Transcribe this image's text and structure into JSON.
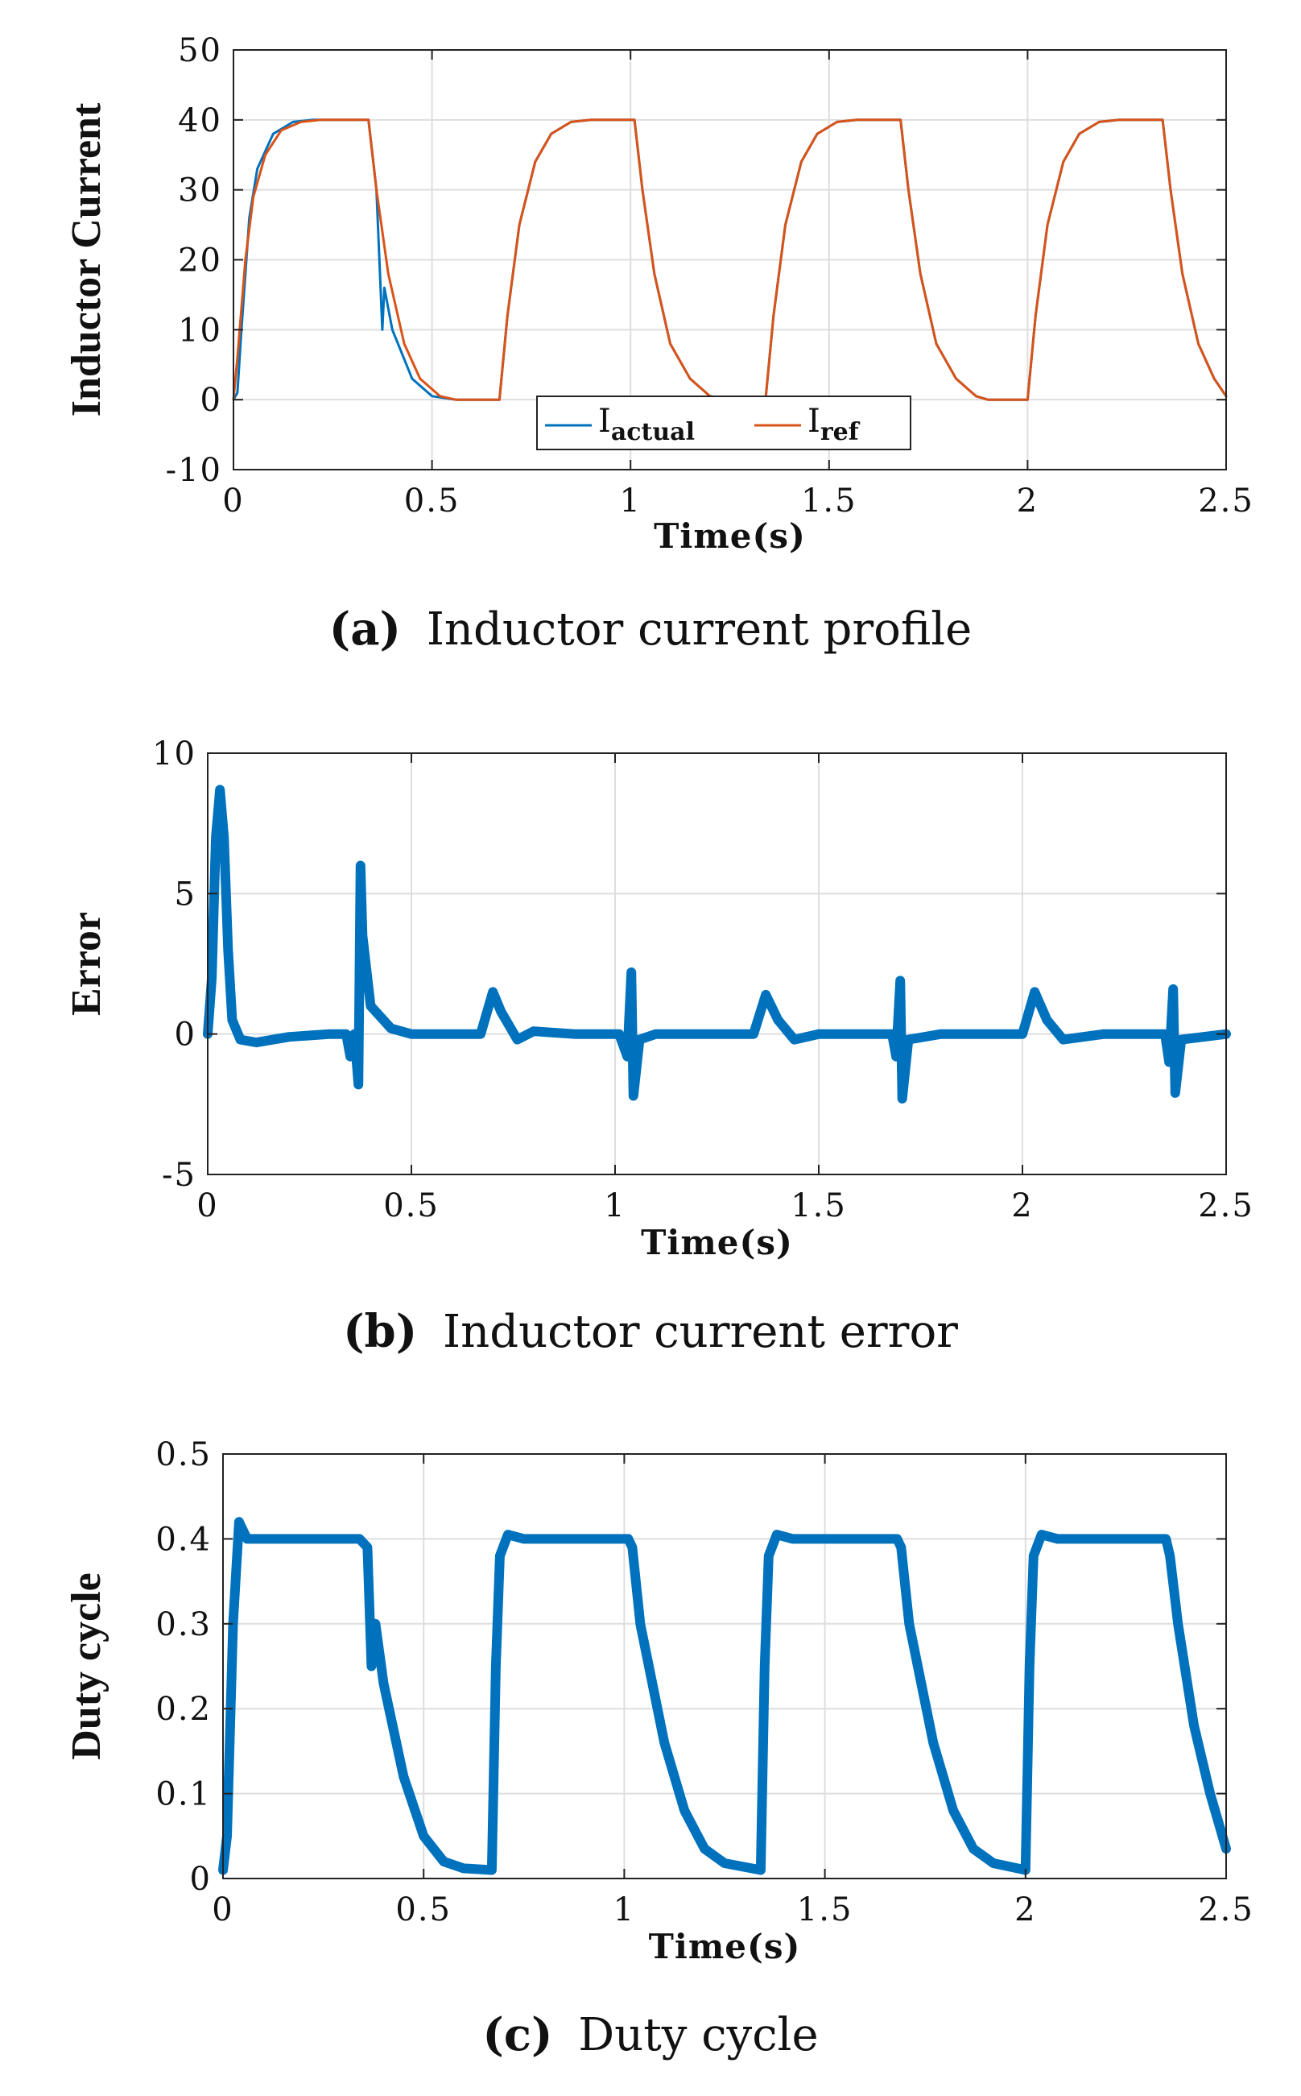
{
  "colors": {
    "actual": "#0072BD",
    "ref": "#D95319",
    "grid": "#dedede",
    "axis": "#222222"
  },
  "chart_data": [
    {
      "id": "a",
      "type": "line",
      "xlabel": "Time(s)",
      "ylabel": "Inductor Current",
      "xlim": [
        0,
        2.5
      ],
      "ylim": [
        -10,
        50
      ],
      "xticks": [
        0,
        0.5,
        1,
        1.5,
        2,
        2.5
      ],
      "xtick_labels": [
        "0",
        "0.5",
        "1",
        "1.5",
        "2",
        "2.5"
      ],
      "yticks": [
        -10,
        0,
        10,
        20,
        30,
        40,
        50
      ],
      "ytick_labels": [
        "-10",
        "0",
        "10",
        "20",
        "30",
        "40",
        "50"
      ],
      "caption": {
        "tag": "(a)",
        "letter": "a",
        "text": "Inductor current profile"
      },
      "legend": [
        {
          "base": "I",
          "sub": "actual",
          "series": "actual"
        },
        {
          "base": "I",
          "sub": "ref",
          "series": "ref"
        }
      ],
      "legend_location": "bottom-center",
      "series": [
        {
          "name": "I_actual",
          "color_key": "actual",
          "points": [
            [
              0,
              0
            ],
            [
              0.01,
              1
            ],
            [
              0.02,
              10
            ],
            [
              0.04,
              26
            ],
            [
              0.06,
              33
            ],
            [
              0.1,
              38
            ],
            [
              0.15,
              39.7
            ],
            [
              0.2,
              40
            ],
            [
              0.34,
              40
            ],
            [
              0.36,
              30
            ],
            [
              0.375,
              10
            ],
            [
              0.38,
              16
            ],
            [
              0.4,
              10
            ],
            [
              0.45,
              3
            ],
            [
              0.5,
              0.5
            ],
            [
              0.56,
              0
            ],
            [
              0.67,
              0
            ],
            [
              0.69,
              12
            ],
            [
              0.72,
              25
            ],
            [
              0.76,
              34
            ],
            [
              0.8,
              38
            ],
            [
              0.85,
              39.7
            ],
            [
              0.9,
              40
            ],
            [
              1.01,
              40
            ],
            [
              1.03,
              30
            ],
            [
              1.06,
              18
            ],
            [
              1.1,
              8
            ],
            [
              1.15,
              3
            ],
            [
              1.2,
              0.5
            ],
            [
              1.25,
              0
            ],
            [
              1.34,
              0
            ],
            [
              1.36,
              12
            ],
            [
              1.39,
              25
            ],
            [
              1.43,
              34
            ],
            [
              1.47,
              38
            ],
            [
              1.52,
              39.7
            ],
            [
              1.57,
              40
            ],
            [
              1.68,
              40
            ],
            [
              1.7,
              30
            ],
            [
              1.73,
              18
            ],
            [
              1.77,
              8
            ],
            [
              1.82,
              3
            ],
            [
              1.87,
              0.5
            ],
            [
              1.9,
              0
            ],
            [
              2.0,
              0
            ],
            [
              2.02,
              12
            ],
            [
              2.05,
              25
            ],
            [
              2.09,
              34
            ],
            [
              2.13,
              38
            ],
            [
              2.18,
              39.7
            ],
            [
              2.23,
              40
            ],
            [
              2.34,
              40
            ],
            [
              2.36,
              30
            ],
            [
              2.39,
              18
            ],
            [
              2.43,
              8
            ],
            [
              2.47,
              3
            ],
            [
              2.5,
              0.5
            ]
          ]
        },
        {
          "name": "I_ref",
          "color_key": "ref",
          "points": [
            [
              0,
              0
            ],
            [
              0.01,
              6
            ],
            [
              0.03,
              20
            ],
            [
              0.05,
              29
            ],
            [
              0.08,
              35
            ],
            [
              0.12,
              38.5
            ],
            [
              0.17,
              39.7
            ],
            [
              0.22,
              40
            ],
            [
              0.34,
              40
            ],
            [
              0.36,
              30
            ],
            [
              0.39,
              18
            ],
            [
              0.43,
              8
            ],
            [
              0.47,
              3
            ],
            [
              0.52,
              0.5
            ],
            [
              0.56,
              0
            ],
            [
              0.67,
              0
            ],
            [
              0.69,
              12
            ],
            [
              0.72,
              25
            ],
            [
              0.76,
              34
            ],
            [
              0.8,
              38
            ],
            [
              0.85,
              39.7
            ],
            [
              0.9,
              40
            ],
            [
              1.01,
              40
            ],
            [
              1.03,
              30
            ],
            [
              1.06,
              18
            ],
            [
              1.1,
              8
            ],
            [
              1.15,
              3
            ],
            [
              1.2,
              0.5
            ],
            [
              1.25,
              0
            ],
            [
              1.34,
              0
            ],
            [
              1.36,
              12
            ],
            [
              1.39,
              25
            ],
            [
              1.43,
              34
            ],
            [
              1.47,
              38
            ],
            [
              1.52,
              39.7
            ],
            [
              1.57,
              40
            ],
            [
              1.68,
              40
            ],
            [
              1.7,
              30
            ],
            [
              1.73,
              18
            ],
            [
              1.77,
              8
            ],
            [
              1.82,
              3
            ],
            [
              1.87,
              0.5
            ],
            [
              1.9,
              0
            ],
            [
              2.0,
              0
            ],
            [
              2.02,
              12
            ],
            [
              2.05,
              25
            ],
            [
              2.09,
              34
            ],
            [
              2.13,
              38
            ],
            [
              2.18,
              39.7
            ],
            [
              2.23,
              40
            ],
            [
              2.34,
              40
            ],
            [
              2.36,
              30
            ],
            [
              2.39,
              18
            ],
            [
              2.43,
              8
            ],
            [
              2.47,
              3
            ],
            [
              2.5,
              0.5
            ]
          ]
        }
      ]
    },
    {
      "id": "b",
      "type": "line",
      "xlabel": "Time(s)",
      "ylabel": "Error",
      "xlim": [
        0,
        2.5
      ],
      "ylim": [
        -5,
        10
      ],
      "xticks": [
        0,
        0.5,
        1,
        1.5,
        2,
        2.5
      ],
      "xtick_labels": [
        "0",
        "0.5",
        "1",
        "1.5",
        "2",
        "2.5"
      ],
      "yticks": [
        -5,
        0,
        5,
        10
      ],
      "ytick_labels": [
        "-5",
        "0",
        "5",
        "10"
      ],
      "caption": {
        "tag": "(b)",
        "letter": "b",
        "text": "Inductor current error"
      },
      "series": [
        {
          "name": "error",
          "color_key": "actual",
          "points": [
            [
              0,
              0
            ],
            [
              0.01,
              2
            ],
            [
              0.02,
              7
            ],
            [
              0.03,
              8.7
            ],
            [
              0.04,
              7
            ],
            [
              0.05,
              3
            ],
            [
              0.06,
              0.5
            ],
            [
              0.08,
              -0.2
            ],
            [
              0.12,
              -0.3
            ],
            [
              0.2,
              -0.1
            ],
            [
              0.3,
              0
            ],
            [
              0.34,
              0
            ],
            [
              0.35,
              -0.8
            ],
            [
              0.36,
              0
            ],
            [
              0.37,
              -1.8
            ],
            [
              0.375,
              6
            ],
            [
              0.38,
              3.5
            ],
            [
              0.4,
              1
            ],
            [
              0.45,
              0.2
            ],
            [
              0.5,
              0
            ],
            [
              0.67,
              0
            ],
            [
              0.7,
              1.5
            ],
            [
              0.72,
              0.8
            ],
            [
              0.76,
              -0.2
            ],
            [
              0.8,
              0.1
            ],
            [
              0.9,
              0
            ],
            [
              1.01,
              0
            ],
            [
              1.03,
              -0.8
            ],
            [
              1.04,
              2.2
            ],
            [
              1.045,
              -2.2
            ],
            [
              1.06,
              -0.2
            ],
            [
              1.1,
              0
            ],
            [
              1.34,
              0
            ],
            [
              1.37,
              1.4
            ],
            [
              1.4,
              0.5
            ],
            [
              1.44,
              -0.2
            ],
            [
              1.5,
              0
            ],
            [
              1.68,
              0
            ],
            [
              1.69,
              -0.8
            ],
            [
              1.7,
              1.9
            ],
            [
              1.705,
              -2.3
            ],
            [
              1.72,
              -0.2
            ],
            [
              1.8,
              0
            ],
            [
              2.0,
              0
            ],
            [
              2.03,
              1.5
            ],
            [
              2.06,
              0.5
            ],
            [
              2.1,
              -0.2
            ],
            [
              2.2,
              0
            ],
            [
              2.35,
              0
            ],
            [
              2.36,
              -1
            ],
            [
              2.37,
              1.6
            ],
            [
              2.375,
              -2.1
            ],
            [
              2.39,
              -0.2
            ],
            [
              2.5,
              0
            ]
          ]
        }
      ]
    },
    {
      "id": "c",
      "type": "line",
      "xlabel": "Time(s)",
      "ylabel": "Duty cycle",
      "xlim": [
        0,
        2.5
      ],
      "ylim": [
        0,
        0.5
      ],
      "xticks": [
        0,
        0.5,
        1,
        1.5,
        2,
        2.5
      ],
      "xtick_labels": [
        "0",
        "0.5",
        "1",
        "1.5",
        "2",
        "2.5"
      ],
      "yticks": [
        0,
        0.1,
        0.2,
        0.3,
        0.4,
        0.5
      ],
      "ytick_labels": [
        "0",
        "0.1",
        "0.2",
        "0.3",
        "0.4",
        "0.5"
      ],
      "caption": {
        "tag": "(c)",
        "letter": "c",
        "text": "Duty cycle"
      },
      "series": [
        {
          "name": "duty",
          "color_key": "actual",
          "points": [
            [
              0,
              0.01
            ],
            [
              0.01,
              0.05
            ],
            [
              0.025,
              0.3
            ],
            [
              0.04,
              0.42
            ],
            [
              0.06,
              0.4
            ],
            [
              0.34,
              0.4
            ],
            [
              0.36,
              0.39
            ],
            [
              0.37,
              0.25
            ],
            [
              0.38,
              0.3
            ],
            [
              0.4,
              0.23
            ],
            [
              0.45,
              0.12
            ],
            [
              0.5,
              0.05
            ],
            [
              0.55,
              0.02
            ],
            [
              0.6,
              0.012
            ],
            [
              0.67,
              0.01
            ],
            [
              0.68,
              0.25
            ],
            [
              0.69,
              0.38
            ],
            [
              0.71,
              0.405
            ],
            [
              0.75,
              0.4
            ],
            [
              1.01,
              0.4
            ],
            [
              1.02,
              0.39
            ],
            [
              1.04,
              0.3
            ],
            [
              1.1,
              0.16
            ],
            [
              1.15,
              0.08
            ],
            [
              1.2,
              0.035
            ],
            [
              1.25,
              0.018
            ],
            [
              1.34,
              0.01
            ],
            [
              1.35,
              0.25
            ],
            [
              1.36,
              0.38
            ],
            [
              1.38,
              0.405
            ],
            [
              1.42,
              0.4
            ],
            [
              1.68,
              0.4
            ],
            [
              1.69,
              0.39
            ],
            [
              1.71,
              0.3
            ],
            [
              1.77,
              0.16
            ],
            [
              1.82,
              0.08
            ],
            [
              1.87,
              0.035
            ],
            [
              1.92,
              0.018
            ],
            [
              2.0,
              0.01
            ],
            [
              2.01,
              0.25
            ],
            [
              2.02,
              0.38
            ],
            [
              2.04,
              0.405
            ],
            [
              2.08,
              0.4
            ],
            [
              2.35,
              0.4
            ],
            [
              2.36,
              0.38
            ],
            [
              2.38,
              0.3
            ],
            [
              2.42,
              0.18
            ],
            [
              2.46,
              0.1
            ],
            [
              2.5,
              0.035
            ]
          ]
        }
      ]
    }
  ]
}
